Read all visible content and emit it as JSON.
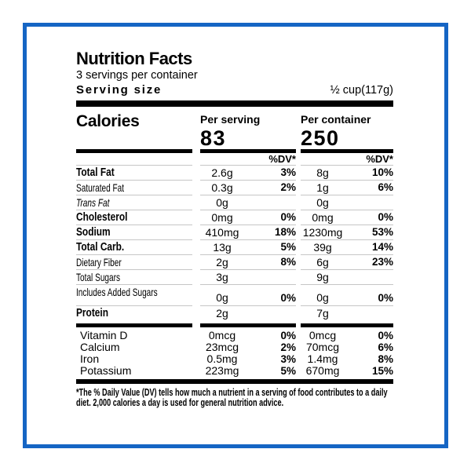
{
  "frame": {
    "color": "#1565c4"
  },
  "header": {
    "title": "Nutrition Facts",
    "servings_per_container": "3 servings per container",
    "serving_size_label": "Serving size",
    "serving_size_value": "½ cup(117g)"
  },
  "calories": {
    "label": "Calories",
    "per_serving_label": "Per serving",
    "per_serving_value": "83",
    "per_container_label": "Per container",
    "per_container_value": "250"
  },
  "table": {
    "dv_header_serving": "%DV*",
    "dv_header_container": "%DV*",
    "rows": [
      {
        "name": "Total Fat",
        "style": "bold",
        "serving": {
          "amount": "2.6g",
          "dv": "3%"
        },
        "container": {
          "amount": "8g",
          "dv": "10%"
        }
      },
      {
        "name": "Saturated Fat",
        "style": "cond",
        "serving": {
          "amount": "0.3g",
          "dv": "2%"
        },
        "container": {
          "amount": "1g",
          "dv": "6%"
        }
      },
      {
        "name": "Trans Fat",
        "style": "cond-italic",
        "serving": {
          "amount": "0g",
          "dv": ""
        },
        "container": {
          "amount": "0g",
          "dv": ""
        }
      },
      {
        "name": "Cholesterol",
        "style": "bold",
        "serving": {
          "amount": "0mg",
          "dv": "0%"
        },
        "container": {
          "amount": "0mg",
          "dv": "0%"
        }
      },
      {
        "name": "Sodium",
        "style": "bold",
        "serving": {
          "amount": "410mg",
          "dv": "18%"
        },
        "container": {
          "amount": "1230mg",
          "dv": "53%"
        }
      },
      {
        "name": "Total Carb.",
        "style": "bold",
        "serving": {
          "amount": "13g",
          "dv": "5%"
        },
        "container": {
          "amount": "39g",
          "dv": "14%"
        }
      },
      {
        "name": "Dietary Fiber",
        "style": "cond",
        "serving": {
          "amount": "2g",
          "dv": "8%"
        },
        "container": {
          "amount": "6g",
          "dv": "23%"
        }
      },
      {
        "name": "Total Sugars",
        "style": "cond",
        "serving": {
          "amount": "3g",
          "dv": ""
        },
        "container": {
          "amount": "9g",
          "dv": ""
        }
      },
      {
        "name": "Includes Added Sugars",
        "style": "cond",
        "tall": true,
        "serving": {
          "amount": "0g",
          "dv": "0%"
        },
        "container": {
          "amount": "0g",
          "dv": "0%"
        }
      },
      {
        "name": "Protein",
        "style": "bold",
        "last": true,
        "serving": {
          "amount": "2g",
          "dv": ""
        },
        "container": {
          "amount": "7g",
          "dv": ""
        }
      }
    ]
  },
  "vitamins": {
    "rows": [
      {
        "name": "Vitamin D",
        "serving": {
          "amount": "0mcg",
          "dv": "0%"
        },
        "container": {
          "amount": "0mcg",
          "dv": "0%"
        }
      },
      {
        "name": "Calcium",
        "serving": {
          "amount": "23mcg",
          "dv": "2%"
        },
        "container": {
          "amount": "70mcg",
          "dv": "6%"
        }
      },
      {
        "name": "Iron",
        "serving": {
          "amount": "0.5mg",
          "dv": "3%"
        },
        "container": {
          "amount": "1.4mg",
          "dv": "8%"
        }
      },
      {
        "name": "Potassium",
        "serving": {
          "amount": "223mg",
          "dv": "5%"
        },
        "container": {
          "amount": "670mg",
          "dv": "15%"
        }
      }
    ]
  },
  "footnote": {
    "text": "*The % Daily Value (DV) tells how much a nutrient in a serving of food contributes to a daily diet. 2,000 calories a day is used for general nutrition advice."
  }
}
